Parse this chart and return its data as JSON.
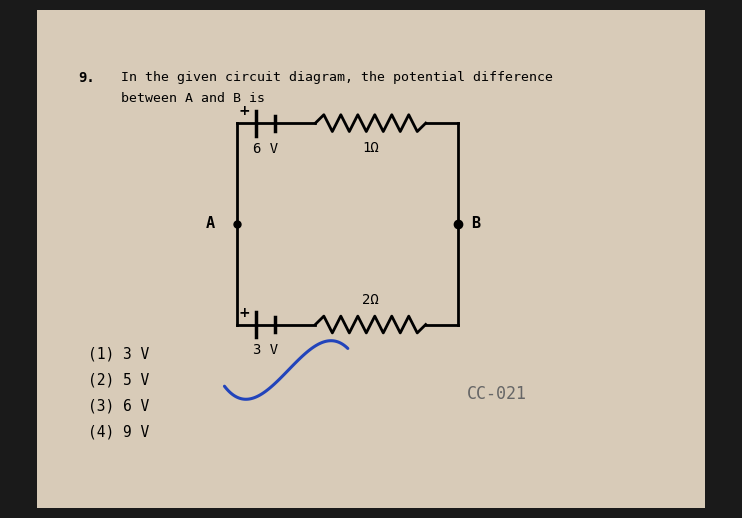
{
  "question_number": "9.",
  "question_text_line1": "In the given circuit diagram, the potential difference",
  "question_text_line2": "between A and B is",
  "bg_color": "#d8cbb8",
  "dark_bg_color": "#1a1a1a",
  "circuit_color": "#000000",
  "options": [
    "(1) 3 V",
    "(2) 5 V",
    "(3) 6 V",
    "(4) 9 V"
  ],
  "answer_checked": 1,
  "watermark": "CC-021",
  "battery_top_label": "6 V",
  "battery_top_sign_plus": "+",
  "battery_bottom_label": "3 V",
  "battery_bottom_sign_plus": "+",
  "resistor_top_label": "1Ω",
  "resistor_bottom_label": "2Ω",
  "node_A_label": "A",
  "node_B_label": "B"
}
